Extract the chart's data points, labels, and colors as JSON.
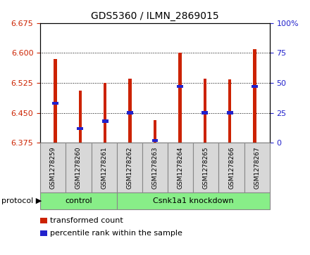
{
  "title": "GDS5360 / ILMN_2869015",
  "samples": [
    "GSM1278259",
    "GSM1278260",
    "GSM1278261",
    "GSM1278262",
    "GSM1278263",
    "GSM1278264",
    "GSM1278265",
    "GSM1278266",
    "GSM1278267"
  ],
  "transformed_count": [
    6.585,
    6.505,
    6.525,
    6.535,
    6.432,
    6.6,
    6.535,
    6.533,
    6.61
  ],
  "percentile_rank": [
    33,
    12,
    18,
    25,
    2,
    47,
    25,
    25,
    47
  ],
  "y_min": 6.375,
  "y_max": 6.675,
  "y_ticks": [
    6.375,
    6.45,
    6.525,
    6.6,
    6.675
  ],
  "right_y_ticks": [
    0,
    25,
    50,
    75,
    100
  ],
  "bar_color": "#cc2200",
  "square_color": "#2222cc",
  "control_count": 3,
  "control_label": "control",
  "knockdown_label": "Csnk1a1 knockdown",
  "protocol_label": "protocol",
  "legend_red": "transformed count",
  "legend_blue": "percentile rank within the sample",
  "group_box_color": "#88ee88",
  "tick_label_color_left": "#cc2200",
  "tick_label_color_right": "#2222cc",
  "bar_width": 0.12,
  "bar_bottom": 6.375,
  "sample_box_color": "#d8d8d8",
  "sample_box_border": "#888888"
}
